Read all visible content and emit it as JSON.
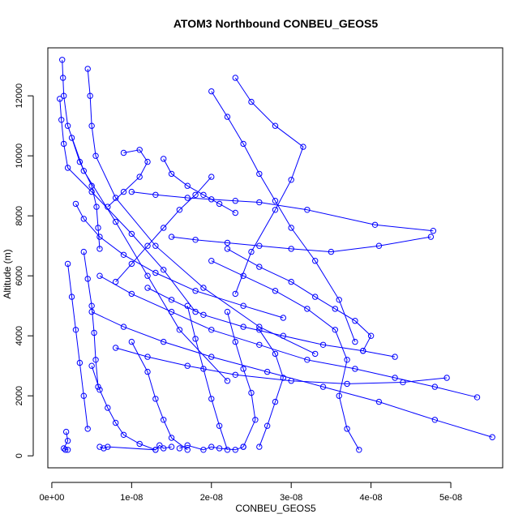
{
  "chart_data": {
    "type": "scatter",
    "title": "ATOM3 Northbound CONBEU_GEOS5",
    "xlabel": "CONBEU_GEOS5",
    "ylabel": "Altitude (m)",
    "xlim": [
      -5e-10,
      5.65e-08
    ],
    "ylim": [
      -400,
      13600
    ],
    "x_ticks": [
      0,
      1e-08,
      2e-08,
      3e-08,
      4e-08,
      5e-08
    ],
    "x_tick_labels": [
      "0e+00",
      "1e-08",
      "2e-08",
      "3e-08",
      "4e-08",
      "5e-08"
    ],
    "y_ticks": [
      0,
      2000,
      4000,
      6000,
      8000,
      10000,
      12000
    ],
    "y_tick_labels": [
      "0",
      "2000",
      "4000",
      "6000",
      "8000",
      "10000",
      "12000"
    ],
    "grid": false,
    "legend": "none",
    "marker": "open-circle",
    "connected": true,
    "series_color": "#0000ff",
    "series": [
      {
        "x": [
          1e-09,
          1.2e-09,
          1.5e-09,
          2e-09,
          5e-09,
          1e-08,
          1.4e-08,
          1.8e-08
        ],
        "y": [
          11900,
          11200,
          10400,
          9600,
          8800,
          7400,
          6200,
          4800
        ]
      },
      {
        "x": [
          1.3e-09,
          1.4e-09,
          1.5e-09,
          2e-09,
          4e-09,
          8e-09,
          1.2e-08,
          1.6e-08,
          2.2e-08
        ],
        "y": [
          13200,
          12600,
          12000,
          11000,
          9500,
          7800,
          6000,
          4200,
          2500
        ]
      },
      {
        "x": [
          4.5e-09,
          4.8e-09,
          5e-09,
          5.5e-09,
          8e-09,
          1.3e-08,
          1.9e-08,
          2.6e-08,
          3.3e-08
        ],
        "y": [
          12900,
          12000,
          11000,
          10000,
          8600,
          7000,
          5600,
          4300,
          3400
        ]
      },
      {
        "x": [
          2e-08,
          2.2e-08,
          2.4e-08,
          2.6e-08,
          2.8e-08,
          3e-08,
          3.3e-08,
          3.6e-08,
          3.8e-08
        ],
        "y": [
          12150,
          11300,
          10400,
          9400,
          8500,
          7600,
          6500,
          5200,
          3800
        ]
      },
      {
        "x": [
          2.3e-08,
          2.5e-08,
          2.8e-08,
          3.15e-08,
          3e-08,
          2.8e-08,
          2.5e-08,
          2.3e-08
        ],
        "y": [
          12600,
          11800,
          11000,
          10300,
          9200,
          8200,
          6800,
          5400
        ]
      },
      {
        "x": [
          1e-08,
          1.3e-08,
          1.7e-08,
          2e-08,
          2.3e-08,
          2.6e-08,
          3.2e-08,
          4.05e-08,
          4.78e-08
        ],
        "y": [
          8800,
          8700,
          8600,
          8550,
          8500,
          8450,
          8200,
          7700,
          7500
        ]
      },
      {
        "x": [
          1.5e-08,
          1.8e-08,
          2.2e-08,
          2.6e-08,
          3e-08,
          3.5e-08,
          4.1e-08,
          4.75e-08
        ],
        "y": [
          7300,
          7200,
          7100,
          7000,
          6900,
          6800,
          7000,
          7300
        ]
      },
      {
        "x": [
          6e-09,
          1e-08,
          1.5e-08,
          2e-08,
          2.6e-08,
          3.2e-08,
          3.8e-08,
          4.3e-08,
          4.8e-08,
          5.33e-08
        ],
        "y": [
          6000,
          5400,
          4800,
          4200,
          3700,
          3200,
          2900,
          2600,
          2300,
          1950
        ]
      },
      {
        "x": [
          5e-09,
          9e-09,
          1.4e-08,
          2e-08,
          2.7e-08,
          3.4e-08,
          4.1e-08,
          4.8e-08,
          5.52e-08
        ],
        "y": [
          4800,
          4300,
          3800,
          3300,
          2800,
          2300,
          1800,
          1200,
          620
        ]
      },
      {
        "x": [
          8e-09,
          1.2e-08,
          1.7e-08,
          2.3e-08,
          3e-08,
          3.7e-08,
          4.4e-08,
          4.95e-08
        ],
        "y": [
          3600,
          3300,
          3000,
          2700,
          2500,
          2400,
          2450,
          2600
        ]
      },
      {
        "x": [
          1.2e-08,
          1.5e-08,
          1.9e-08,
          2.4e-08,
          2.9e-08,
          3.4e-08,
          3.9e-08,
          4.3e-08
        ],
        "y": [
          5600,
          5200,
          4700,
          4300,
          4000,
          3700,
          3500,
          3300
        ]
      },
      {
        "x": [
          2e-08,
          2.4e-08,
          2.8e-08,
          3.2e-08,
          3.55e-08,
          3.7e-08,
          3.6e-08,
          3.7e-08,
          3.85e-08
        ],
        "y": [
          6500,
          6000,
          5500,
          4900,
          4200,
          3200,
          2000,
          900,
          200
        ]
      },
      {
        "x": [
          2.2e-08,
          2.6e-08,
          3e-08,
          3.3e-08,
          3.55e-08,
          3.8e-08,
          4e-08,
          3.9e-08
        ],
        "y": [
          6900,
          6300,
          5800,
          5300,
          4900,
          4500,
          4000,
          3500
        ]
      },
      {
        "x": [
          5e-09,
          6e-09,
          7e-09,
          8e-09,
          9e-09,
          1.1e-08,
          1.3e-08
        ],
        "y": [
          3000,
          2200,
          1600,
          1100,
          700,
          400,
          200
        ]
      },
      {
        "x": [
          1e-08,
          1.2e-08,
          1.3e-08,
          1.4e-08,
          1.5e-08,
          1.7e-08
        ],
        "y": [
          3800,
          2800,
          1900,
          1200,
          600,
          200
        ]
      },
      {
        "x": [
          1.7e-08,
          1.8e-08,
          1.9e-08,
          2e-08,
          2.1e-08,
          2.2e-08
        ],
        "y": [
          5000,
          3900,
          2900,
          1900,
          1000,
          200
        ]
      },
      {
        "x": [
          2.2e-08,
          2.3e-08,
          2.4e-08,
          2.5e-08,
          2.55e-08,
          2.4e-08
        ],
        "y": [
          4800,
          3800,
          2900,
          2100,
          1200,
          300
        ]
      },
      {
        "x": [
          2.6e-08,
          2.8e-08,
          2.9e-08,
          2.8e-08,
          2.7e-08,
          2.6e-08
        ],
        "y": [
          4200,
          3400,
          2600,
          1800,
          1000,
          300
        ]
      },
      {
        "x": [
          1.4e-08,
          1.5e-08,
          1.7e-08,
          1.9e-08,
          2.1e-08,
          2.3e-08
        ],
        "y": [
          9900,
          9400,
          9000,
          8700,
          8400,
          8100
        ]
      },
      {
        "x": [
          9e-09,
          1.1e-08,
          1.2e-08,
          1.1e-08,
          9e-09,
          7e-09
        ],
        "y": [
          10100,
          10200,
          9800,
          9300,
          8800,
          8300
        ]
      },
      {
        "x": [
          2e-08,
          1.8e-08,
          1.6e-08,
          1.4e-08,
          1.2e-08,
          1e-08,
          8e-09
        ],
        "y": [
          9300,
          8700,
          8200,
          7600,
          7000,
          6400,
          5800
        ]
      },
      {
        "x": [
          3e-09,
          4e-09,
          6e-09,
          9e-09,
          1.3e-08,
          1.8e-08,
          2.4e-08,
          2.9e-08
        ],
        "y": [
          8400,
          7900,
          7300,
          6700,
          6100,
          5500,
          5000,
          4600
        ]
      },
      {
        "x": [
          2.5e-09,
          3.5e-09,
          5e-09,
          5.6e-09,
          5.8e-09,
          6e-09
        ],
        "y": [
          10600,
          9800,
          9000,
          8300,
          7600,
          6900
        ]
      },
      {
        "x": [
          4e-09,
          4.5e-09,
          5e-09,
          5.3e-09,
          5.5e-09,
          5.8e-09
        ],
        "y": [
          6800,
          5900,
          5000,
          4100,
          3200,
          2300
        ]
      },
      {
        "x": [
          2e-09,
          2.5e-09,
          3e-09,
          3.5e-09,
          4e-09,
          4.5e-09
        ],
        "y": [
          6400,
          5300,
          4200,
          3100,
          2000,
          900
        ]
      },
      {
        "x": [
          6e-09,
          6.5e-09,
          7e-09,
          1.3e-08,
          1.35e-08,
          1.4e-08,
          1.5e-08
        ],
        "y": [
          300,
          250,
          300,
          200,
          350,
          250,
          300
        ]
      },
      {
        "x": [
          1.6e-08,
          1.7e-08,
          1.9e-08,
          2e-08,
          2.1e-08,
          2.3e-08,
          2.4e-08
        ],
        "y": [
          250,
          350,
          200,
          300,
          250,
          200,
          300
        ]
      },
      {
        "x": [
          1.8e-09,
          2e-09,
          1.5e-09,
          1.7e-09,
          2e-09
        ],
        "y": [
          800,
          500,
          250,
          200,
          200
        ]
      }
    ]
  }
}
